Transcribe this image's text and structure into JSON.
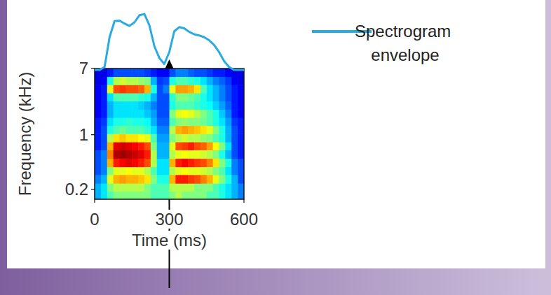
{
  "chart_data": {
    "type": "heatmap",
    "x_label": "Time (ms)",
    "y_label": "Frequency (kHz)",
    "xlim": [
      0,
      600
    ],
    "xticks": [
      0,
      300,
      600
    ],
    "ylim": [
      0.15,
      7
    ],
    "yticks": [
      7,
      1,
      0.2
    ],
    "log": "y",
    "x_bins": [
      0,
      25,
      50,
      75,
      100,
      125,
      150,
      175,
      200,
      225,
      250,
      275,
      300,
      325,
      350,
      375,
      400,
      425,
      450,
      475,
      500,
      525,
      550,
      575,
      600
    ],
    "y_bins": [
      0.15,
      0.19,
      0.24,
      0.31,
      0.39,
      0.5,
      0.64,
      0.81,
      1.03,
      1.31,
      1.66,
      2.11,
      2.69,
      3.42,
      4.35,
      5.53,
      7
    ],
    "clim": [
      0,
      1
    ],
    "cells": [
      [
        0.3,
        0.35,
        0.45,
        0.5,
        0.5,
        0.5,
        0.5,
        0.5,
        0.5,
        0.45,
        0.45,
        0.45,
        0.5,
        0.55,
        0.5,
        0.5,
        0.5,
        0.5,
        0.45,
        0.45,
        0.4,
        0.35,
        0.3,
        0.25
      ],
      [
        0.3,
        0.35,
        0.5,
        0.55,
        0.55,
        0.55,
        0.55,
        0.55,
        0.5,
        0.45,
        0.45,
        0.45,
        0.55,
        0.55,
        0.55,
        0.55,
        0.5,
        0.5,
        0.5,
        0.45,
        0.4,
        0.35,
        0.3,
        0.25
      ],
      [
        0.25,
        0.3,
        0.6,
        0.7,
        0.72,
        0.7,
        0.7,
        0.68,
        0.65,
        0.5,
        0.4,
        0.4,
        0.7,
        0.85,
        0.85,
        0.82,
        0.8,
        0.75,
        0.7,
        0.6,
        0.5,
        0.4,
        0.3,
        0.2
      ],
      [
        0.2,
        0.25,
        0.5,
        0.6,
        0.6,
        0.62,
        0.6,
        0.6,
        0.55,
        0.45,
        0.35,
        0.35,
        0.55,
        0.6,
        0.62,
        0.6,
        0.6,
        0.58,
        0.55,
        0.5,
        0.45,
        0.35,
        0.25,
        0.2
      ],
      [
        0.2,
        0.25,
        0.7,
        0.85,
        0.88,
        0.9,
        0.88,
        0.85,
        0.8,
        0.55,
        0.35,
        0.35,
        0.7,
        0.85,
        0.88,
        0.85,
        0.82,
        0.8,
        0.75,
        0.65,
        0.5,
        0.4,
        0.25,
        0.2
      ],
      [
        0.2,
        0.25,
        0.75,
        0.95,
        0.97,
        0.95,
        0.93,
        0.9,
        0.85,
        0.55,
        0.3,
        0.3,
        0.55,
        0.6,
        0.62,
        0.6,
        0.6,
        0.58,
        0.55,
        0.5,
        0.4,
        0.3,
        0.2,
        0.15
      ],
      [
        0.15,
        0.2,
        0.7,
        0.9,
        0.92,
        0.9,
        0.88,
        0.85,
        0.8,
        0.5,
        0.3,
        0.3,
        0.6,
        0.8,
        0.82,
        0.85,
        0.8,
        0.78,
        0.72,
        0.62,
        0.5,
        0.35,
        0.2,
        0.15
      ],
      [
        0.15,
        0.2,
        0.55,
        0.65,
        0.68,
        0.65,
        0.65,
        0.62,
        0.6,
        0.45,
        0.28,
        0.28,
        0.5,
        0.55,
        0.58,
        0.55,
        0.55,
        0.52,
        0.5,
        0.45,
        0.4,
        0.3,
        0.2,
        0.15
      ],
      [
        0.15,
        0.2,
        0.4,
        0.45,
        0.48,
        0.45,
        0.45,
        0.45,
        0.42,
        0.35,
        0.25,
        0.25,
        0.55,
        0.7,
        0.72,
        0.7,
        0.68,
        0.65,
        0.6,
        0.5,
        0.4,
        0.3,
        0.2,
        0.15
      ],
      [
        0.15,
        0.18,
        0.35,
        0.4,
        0.4,
        0.42,
        0.4,
        0.4,
        0.38,
        0.3,
        0.22,
        0.22,
        0.45,
        0.5,
        0.52,
        0.5,
        0.5,
        0.48,
        0.45,
        0.4,
        0.35,
        0.28,
        0.18,
        0.15
      ],
      [
        0.12,
        0.15,
        0.3,
        0.35,
        0.35,
        0.35,
        0.35,
        0.35,
        0.32,
        0.28,
        0.2,
        0.2,
        0.5,
        0.6,
        0.62,
        0.6,
        0.55,
        0.5,
        0.45,
        0.4,
        0.32,
        0.25,
        0.15,
        0.12
      ],
      [
        0.12,
        0.15,
        0.3,
        0.35,
        0.35,
        0.35,
        0.35,
        0.33,
        0.3,
        0.25,
        0.2,
        0.2,
        0.4,
        0.45,
        0.45,
        0.45,
        0.42,
        0.4,
        0.38,
        0.33,
        0.28,
        0.22,
        0.15,
        0.12
      ],
      [
        0.12,
        0.15,
        0.35,
        0.45,
        0.45,
        0.45,
        0.45,
        0.42,
        0.4,
        0.3,
        0.2,
        0.2,
        0.42,
        0.5,
        0.5,
        0.48,
        0.45,
        0.4,
        0.35,
        0.3,
        0.25,
        0.2,
        0.15,
        0.12
      ],
      [
        0.12,
        0.15,
        0.6,
        0.8,
        0.82,
        0.8,
        0.8,
        0.78,
        0.7,
        0.4,
        0.2,
        0.25,
        0.6,
        0.72,
        0.72,
        0.7,
        0.65,
        0.45,
        0.35,
        0.3,
        0.25,
        0.2,
        0.15,
        0.12
      ],
      [
        0.1,
        0.12,
        0.4,
        0.55,
        0.58,
        0.55,
        0.55,
        0.52,
        0.5,
        0.3,
        0.18,
        0.2,
        0.4,
        0.45,
        0.45,
        0.42,
        0.4,
        0.35,
        0.3,
        0.25,
        0.22,
        0.18,
        0.12,
        0.1
      ],
      [
        0.1,
        0.1,
        0.15,
        0.2,
        0.2,
        0.2,
        0.2,
        0.2,
        0.18,
        0.15,
        0.12,
        0.12,
        0.2,
        0.25,
        0.25,
        0.22,
        0.2,
        0.2,
        0.18,
        0.15,
        0.15,
        0.12,
        0.1,
        0.1
      ]
    ],
    "y2lim": [
      0,
      1
    ],
    "series": [
      {
        "name": "Spectrogram envelope",
        "type": "line",
        "axis": "y2",
        "color": "#29abe2",
        "x": [
          0,
          20,
          40,
          60,
          80,
          100,
          120,
          140,
          160,
          180,
          200,
          220,
          240,
          260,
          280,
          300,
          320,
          340,
          360,
          380,
          400,
          420,
          440,
          460,
          480,
          500,
          520,
          540,
          560,
          580,
          600
        ],
        "values": [
          0,
          0,
          0.05,
          0.55,
          0.82,
          0.83,
          0.78,
          0.74,
          0.8,
          0.92,
          0.94,
          0.75,
          0.4,
          0.2,
          0.1,
          0.3,
          0.65,
          0.72,
          0.7,
          0.64,
          0.6,
          0.58,
          0.55,
          0.5,
          0.42,
          0.3,
          0.15,
          0.05,
          0,
          0,
          0
        ]
      }
    ],
    "legend": "top-right",
    "arrow_x": 300
  }
}
